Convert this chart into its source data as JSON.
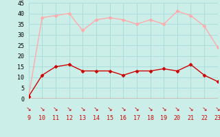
{
  "hours": [
    9,
    10,
    11,
    12,
    13,
    14,
    15,
    16,
    17,
    18,
    19,
    20,
    21,
    22,
    23
  ],
  "wind_avg": [
    1,
    11,
    15,
    16,
    13,
    13,
    13,
    11,
    13,
    13,
    14,
    13,
    16,
    11,
    8
  ],
  "wind_gust": [
    1,
    38,
    39,
    40,
    32,
    37,
    38,
    37,
    35,
    37,
    35,
    41,
    39,
    34,
    24
  ],
  "avg_color": "#cc0000",
  "gust_color": "#ffaaaa",
  "bg_color": "#cceee8",
  "grid_color": "#aadddd",
  "xlim": [
    9,
    23
  ],
  "ylim": [
    0,
    45
  ],
  "yticks": [
    0,
    5,
    10,
    15,
    20,
    25,
    30,
    35,
    40,
    45
  ],
  "xticks": [
    9,
    10,
    11,
    12,
    13,
    14,
    15,
    16,
    17,
    18,
    19,
    20,
    21,
    22,
    23
  ],
  "marker": "D",
  "markersize": 2.5,
  "linewidth": 1.0
}
